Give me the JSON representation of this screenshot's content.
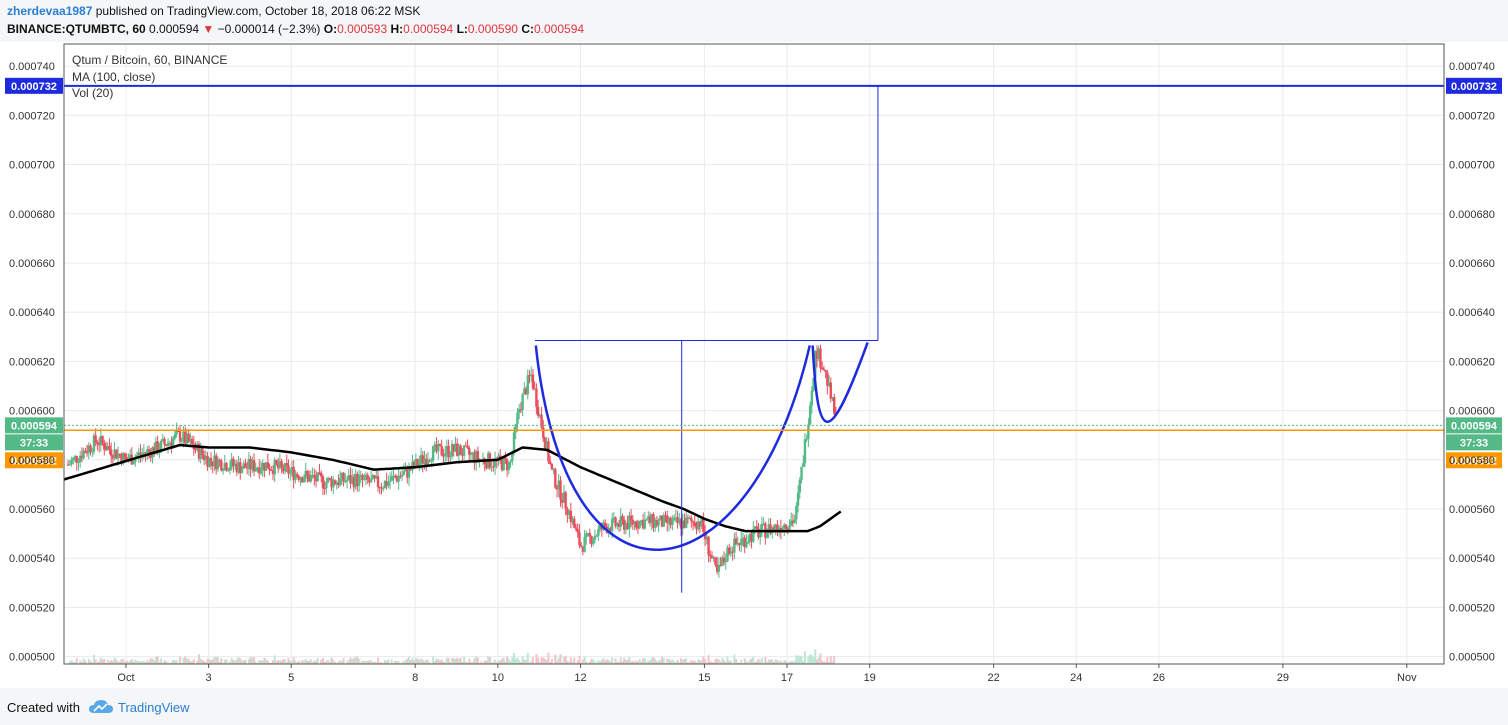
{
  "header": {
    "author": "zherdevaa1987",
    "published_text": "published on TradingView.com, October 18, 2018 06:22 MSK",
    "symbol": "BINANCE:QTUMBTC, 60",
    "last_price": "0.000594",
    "change": "−0.000014 (−2.3%)",
    "o_label": "O:",
    "o_value": "0.000593",
    "h_label": "H:",
    "h_value": "0.000594",
    "l_label": "L:",
    "l_value": "0.000590",
    "c_label": "C:",
    "c_value": "0.000594"
  },
  "legend": {
    "title": "Qtum / Bitcoin, 60, BINANCE",
    "ma": "MA (100, close)",
    "vol": "Vol (20)"
  },
  "chart_data": {
    "type": "candlestick",
    "yaxis_ticks": [
      "0.000740",
      "0.000720",
      "0.000700",
      "0.000680",
      "0.000660",
      "0.000640",
      "0.000620",
      "0.000600",
      "0.000580",
      "0.000560",
      "0.000540",
      "0.000520",
      "0.000500"
    ],
    "yaxis_tick_values": [
      0.00074,
      0.00072,
      0.0007,
      0.00068,
      0.00066,
      0.00064,
      0.00062,
      0.0006,
      0.00058,
      0.00056,
      0.00054,
      0.00052,
      0.0005
    ],
    "ylim": [
      0.000497,
      0.000749
    ],
    "xaxis_labels": [
      "Oct",
      "3",
      "5",
      "8",
      "10",
      "12",
      "15",
      "17",
      "19",
      "22",
      "24",
      "26",
      "29",
      "Nov"
    ],
    "xaxis_days": [
      1,
      3,
      5,
      8,
      10,
      12,
      15,
      17,
      19,
      22,
      24,
      26,
      29,
      32
    ],
    "xlim_days": [
      -0.5,
      32.9
    ],
    "price_series_days": [
      -0.4,
      0.3,
      1.0,
      1.8,
      2.3,
      3.0,
      3.8,
      4.4,
      5.0,
      5.8,
      6.5,
      7.2,
      7.8,
      8.4,
      9.0,
      9.6,
      10.3,
      10.5,
      10.8,
      11.3,
      11.7,
      12.0,
      12.6,
      13.5,
      14.3,
      14.9,
      15.3,
      15.6,
      16.2,
      16.8,
      17.2,
      17.5,
      17.7,
      17.9,
      18.2
    ],
    "price_series": [
      0.000578,
      0.000588,
      0.00058,
      0.000585,
      0.00059,
      0.00058,
      0.000577,
      0.000578,
      0.000575,
      0.000571,
      0.000572,
      0.00057,
      0.000575,
      0.000583,
      0.000584,
      0.00058,
      0.000578,
      0.0006,
      0.000615,
      0.000575,
      0.00056,
      0.000545,
      0.000553,
      0.000555,
      0.000554,
      0.000555,
      0.000533,
      0.000544,
      0.00055,
      0.000553,
      0.000556,
      0.000595,
      0.000625,
      0.000617,
      0.000595
    ],
    "ma_series_days": [
      -0.5,
      0.5,
      1.5,
      2.3,
      3.0,
      4.0,
      5.0,
      6.0,
      7.0,
      8.0,
      9.0,
      10.0,
      10.6,
      11.2,
      12.0,
      13.0,
      14.0,
      14.5,
      15.0,
      15.5,
      16.0,
      16.5,
      17.0,
      17.5,
      17.8,
      18.3
    ],
    "ma_series": [
      0.000572,
      0.000577,
      0.000582,
      0.000586,
      0.000585,
      0.000585,
      0.000583,
      0.00058,
      0.000576,
      0.000577,
      0.000579,
      0.00058,
      0.000585,
      0.000584,
      0.000577,
      0.00057,
      0.000563,
      0.00056,
      0.000556,
      0.000553,
      0.000551,
      0.000551,
      0.000551,
      0.000551,
      0.000553,
      0.000559
    ],
    "current_price": 0.000594,
    "current_price_label": "0.000594",
    "countdown": "37:33",
    "orange_line_price": 0.000592,
    "orange_line_label": "0.000592",
    "target_price": 0.000732,
    "target_price_label": "0.000732",
    "drawings": {
      "neckline_price": 0.0006285,
      "neckline_start_day": 10.9,
      "neckline_end_day": 19.2,
      "cup_bottom_price": 0.000526,
      "cup_center_day": 14.45
    },
    "colors": {
      "up": "#53b987",
      "down": "#eb4d5c",
      "ma": "#000000",
      "drawing": "#1e2adf",
      "price_label": "#53b987",
      "orange": "#ff9800"
    }
  },
  "footer": {
    "created_with": "Created with",
    "brand": "TradingView"
  }
}
